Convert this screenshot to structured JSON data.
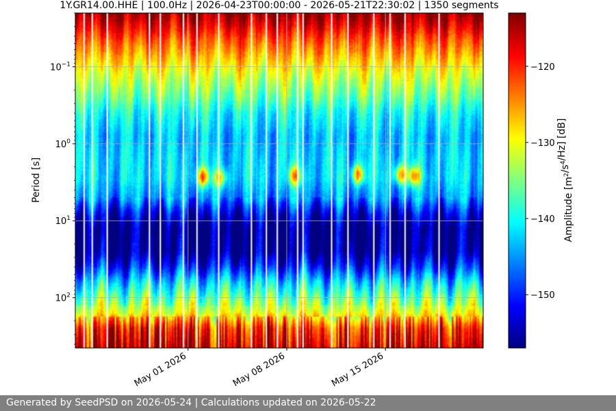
{
  "footer_text": "Generated by SeedPSD on 2026-05-24 | Calculations updated on 2026-05-22",
  "chart_data": {
    "type": "heatmap",
    "title": "1Y.GR14.00.HHE | 100.0Hz | 2026-04-23T00:00:00 - 2026-05-21T22:30:02 | 1350 segments",
    "xlabel": "",
    "ylabel": "Period [s]",
    "colorbar_label": "Amplitude [m^2/s^4/Hz] [dB]",
    "x_range": [
      "2026-04-23T00:00:00",
      "2026-05-21T22:30:02"
    ],
    "x_ticks": [
      {
        "date": "2026-05-01",
        "label": "May 01 2026"
      },
      {
        "date": "2026-05-08",
        "label": "May 08 2026"
      },
      {
        "date": "2026-05-15",
        "label": "May 15 2026"
      }
    ],
    "y_scale": "log",
    "y_inverted": true,
    "y_range": [
      0.02,
      450
    ],
    "y_ticks": [
      {
        "value": 0.1,
        "base": "10",
        "exp": "−1"
      },
      {
        "value": 1,
        "base": "10",
        "exp": "0"
      },
      {
        "value": 10,
        "base": "10",
        "exp": "1"
      },
      {
        "value": 100,
        "base": "10",
        "exp": "2"
      }
    ],
    "colorbar_range": [
      -157,
      -113
    ],
    "colorbar_ticks": [
      -120,
      -130,
      -140,
      -150
    ],
    "colormap": "jet",
    "grid": true,
    "segments": 1350,
    "gap_dates": [
      "2026-04-23T14:00",
      "2026-04-24T03:00",
      "2026-04-25T06:00",
      "2026-04-28T04:00",
      "2026-04-29T00:00",
      "2026-04-30T14:00",
      "2026-05-01T13:00",
      "2026-05-03T02:00",
      "2026-05-05T10:00",
      "2026-05-06T11:00",
      "2026-05-07T06:00",
      "2026-05-08T18:00",
      "2026-05-09T03:00",
      "2026-05-11T04:00",
      "2026-05-12T06:00",
      "2026-05-14T02:00",
      "2026-05-15T06:00",
      "2026-05-16T08:00",
      "2026-05-18T17:00"
    ],
    "energy_events": [
      {
        "date": "2026-05-02T00:00",
        "period": 2.7,
        "level": -123
      },
      {
        "date": "2026-05-03T06:00",
        "period": 2.8,
        "level": -128
      },
      {
        "date": "2026-05-08T13:00",
        "period": 2.6,
        "level": -126
      },
      {
        "date": "2026-05-13T00:00",
        "period": 2.5,
        "level": -124
      },
      {
        "date": "2026-05-16T00:00",
        "period": 2.5,
        "level": -125
      },
      {
        "date": "2026-05-17T00:00",
        "period": 2.6,
        "level": -125
      }
    ]
  }
}
